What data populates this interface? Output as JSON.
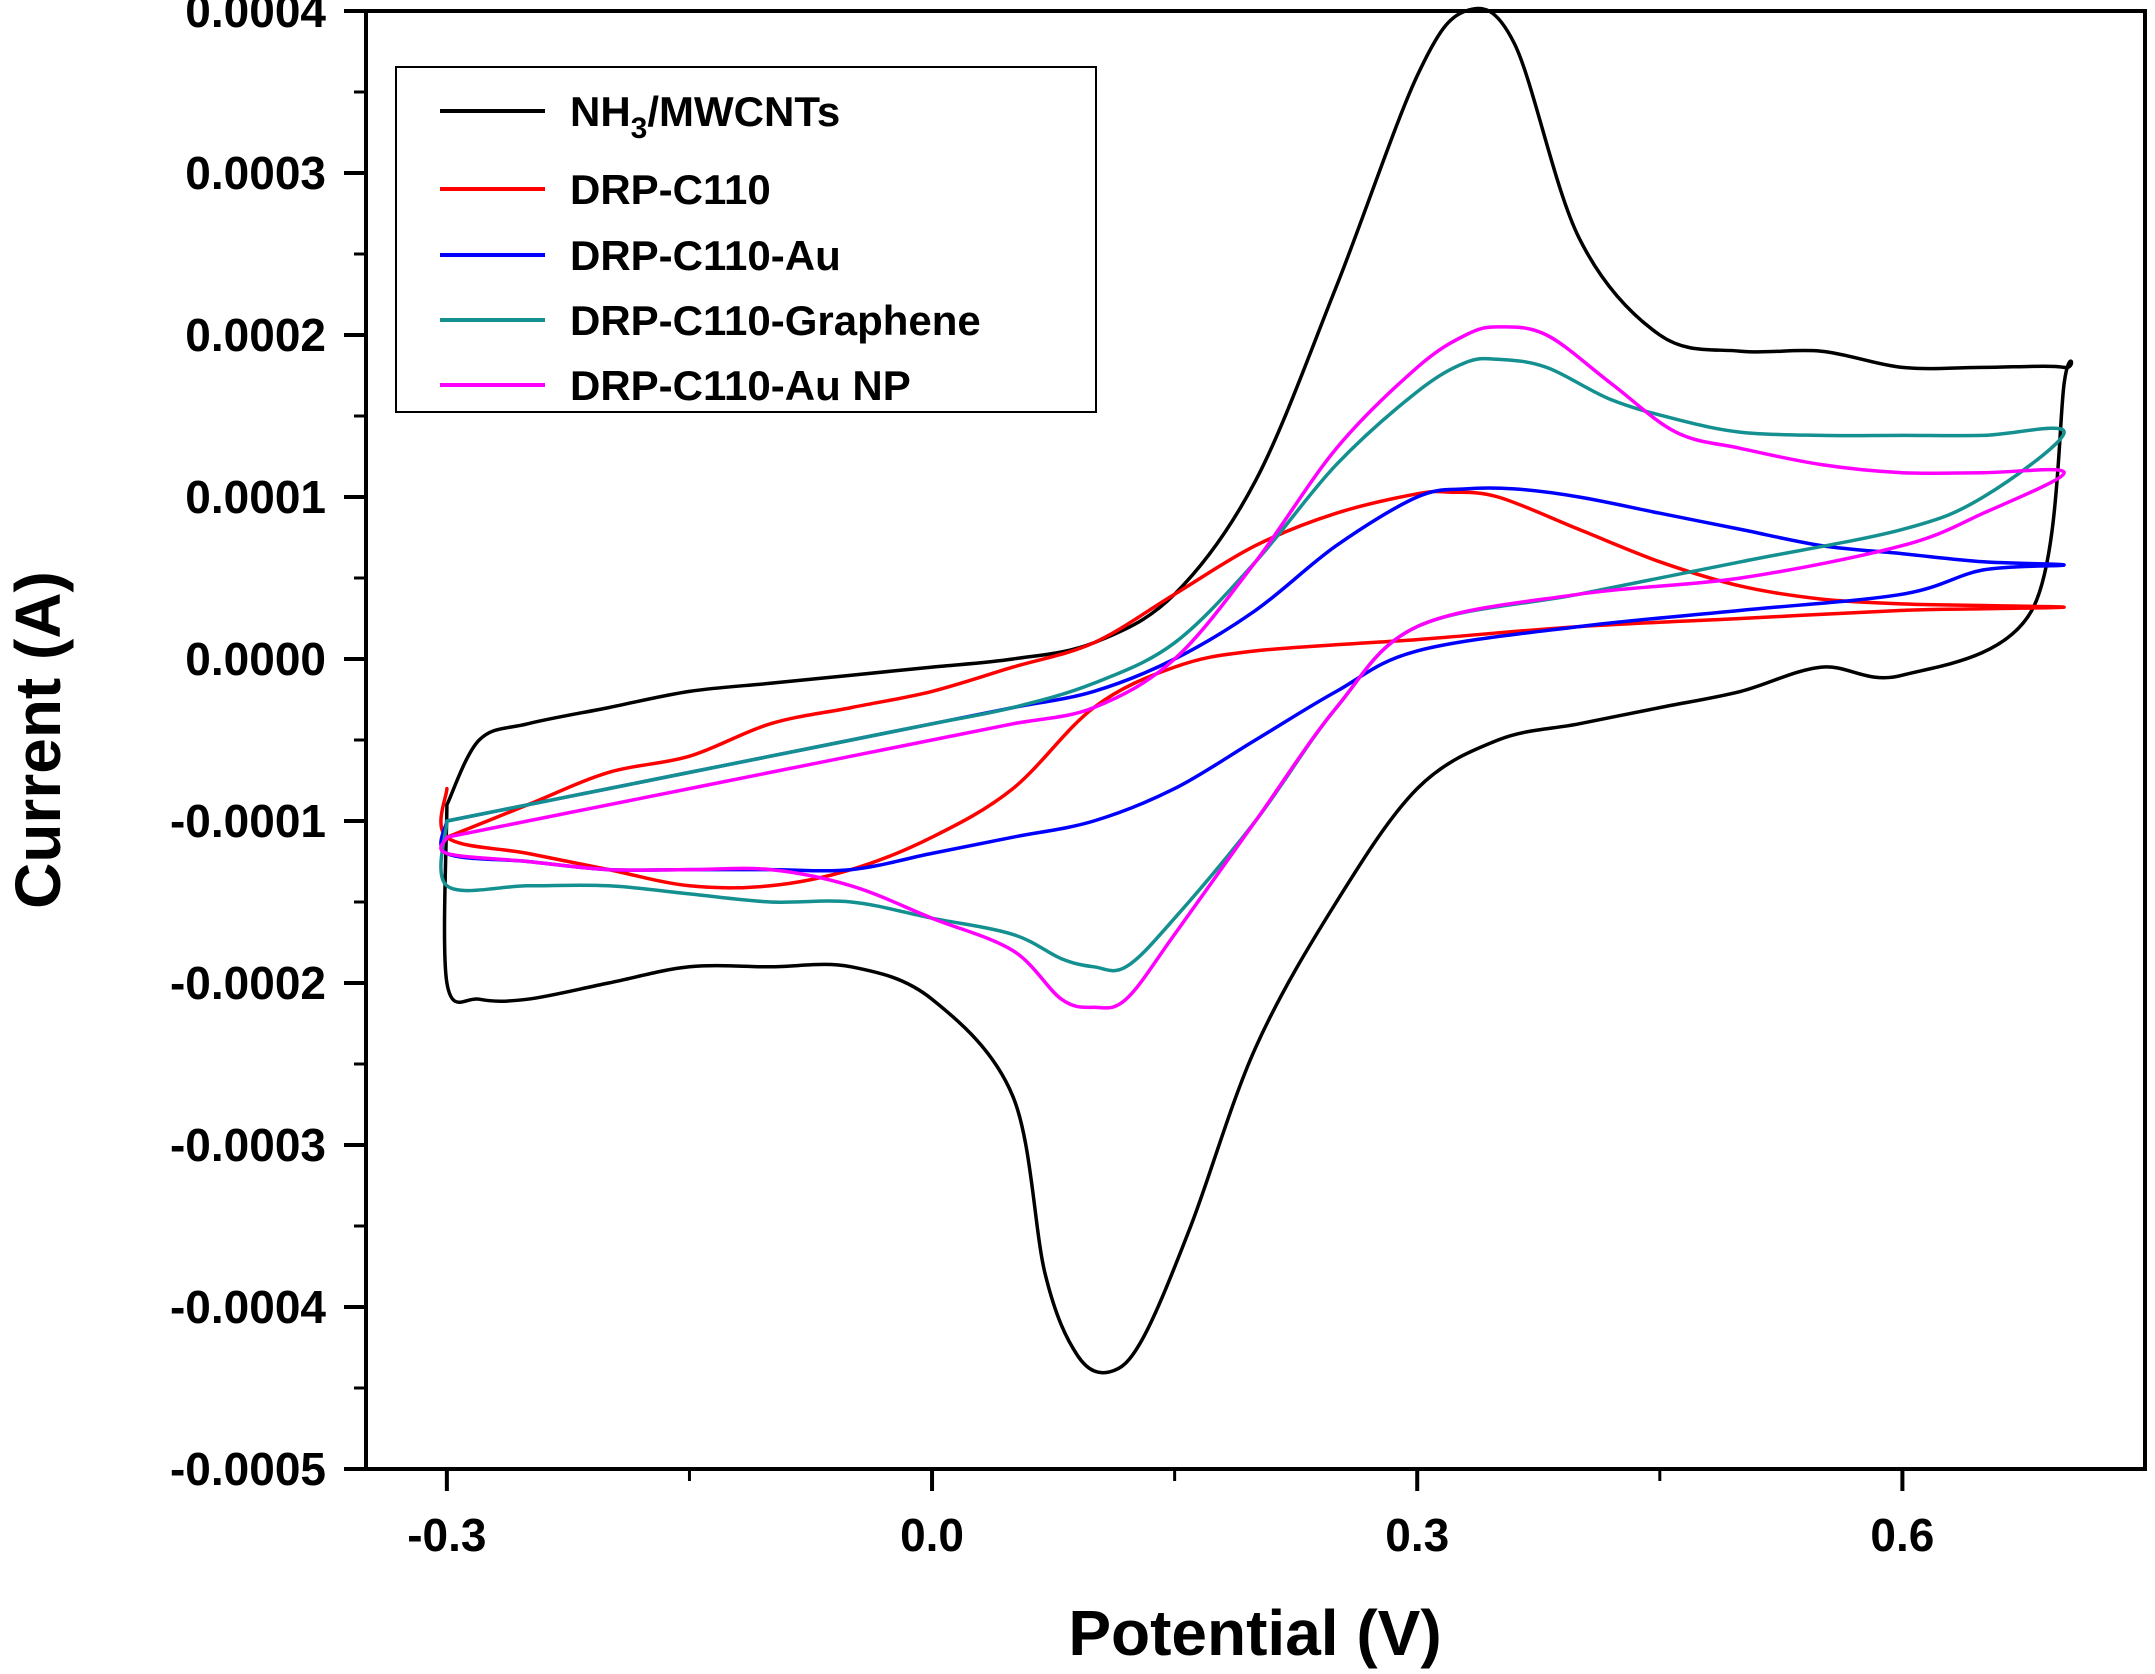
{
  "chart_data": {
    "type": "line",
    "title": "",
    "xlabel": "Potential (V)",
    "ylabel": "Current (A)",
    "xlim": [
      -0.35,
      0.75
    ],
    "ylim": [
      -0.0005,
      0.0004
    ],
    "xticks": [
      -0.3,
      0.0,
      0.3,
      0.6
    ],
    "xtick_labels": [
      "-0.3",
      "0.0",
      "0.3",
      "0.6"
    ],
    "yticks": [
      0.0004,
      0.0003,
      0.0002,
      0.0001,
      0.0,
      -0.0001,
      -0.0002,
      -0.0003,
      -0.0004,
      -0.0005
    ],
    "ytick_labels": [
      "0.0004",
      "0.0003",
      "0.0002",
      "0.0001",
      "0.0000",
      "-0.0001",
      "-0.0002",
      "-0.0003",
      "-0.0004",
      "-0.0005"
    ],
    "grid": false,
    "legend_position": "top-left",
    "series": [
      {
        "name": "NH3/MWCNTs",
        "label_main": "NH",
        "label_sub": "3",
        "label_rest": "/MWCNTs",
        "color": "#000000",
        "x": [
          -0.3,
          -0.28,
          -0.25,
          -0.2,
          -0.15,
          -0.1,
          -0.05,
          0.0,
          0.05,
          0.1,
          0.15,
          0.2,
          0.25,
          0.3,
          0.33,
          0.36,
          0.4,
          0.45,
          0.5,
          0.55,
          0.6,
          0.65,
          0.7,
          0.7,
          0.68,
          0.6,
          0.55,
          0.5,
          0.45,
          0.4,
          0.35,
          0.3,
          0.25,
          0.2,
          0.16,
          0.13,
          0.11,
          0.09,
          0.07,
          0.05,
          0.0,
          -0.05,
          -0.1,
          -0.15,
          -0.2,
          -0.25,
          -0.28,
          -0.3,
          -0.3
        ],
        "y": [
          -9e-05,
          -5e-05,
          -4e-05,
          -3e-05,
          -2e-05,
          -1.5e-05,
          -1e-05,
          -5e-06,
          0.0,
          1e-05,
          4e-05,
          0.00011,
          0.00023,
          0.00036,
          0.0004,
          0.00038,
          0.00026,
          0.0002,
          0.00019,
          0.00019,
          0.00018,
          0.00018,
          0.00018,
          0.00017,
          3e-05,
          -1e-05,
          -5e-06,
          -2e-05,
          -3e-05,
          -4e-05,
          -5e-05,
          -8e-05,
          -0.00015,
          -0.00024,
          -0.00035,
          -0.00042,
          -0.00044,
          -0.00043,
          -0.00038,
          -0.00027,
          -0.00021,
          -0.00019,
          -0.00019,
          -0.00019,
          -0.0002,
          -0.00021,
          -0.00021,
          -0.0002,
          -9e-05
        ]
      },
      {
        "name": "DRP-C110",
        "color": "#ff0000",
        "x": [
          -0.3,
          -0.25,
          -0.2,
          -0.15,
          -0.1,
          -0.05,
          0.0,
          0.05,
          0.1,
          0.15,
          0.2,
          0.25,
          0.3,
          0.32,
          0.35,
          0.4,
          0.45,
          0.5,
          0.55,
          0.6,
          0.65,
          0.7,
          0.65,
          0.6,
          0.5,
          0.4,
          0.3,
          0.2,
          0.15,
          0.1,
          0.05,
          0.0,
          -0.05,
          -0.1,
          -0.15,
          -0.2,
          -0.25,
          -0.3,
          -0.3
        ],
        "y": [
          -0.00011,
          -9e-05,
          -7e-05,
          -6e-05,
          -4e-05,
          -3e-05,
          -2e-05,
          -5e-06,
          1e-05,
          4e-05,
          7e-05,
          9e-05,
          0.000102,
          0.000103,
          0.0001,
          8e-05,
          6e-05,
          4.5e-05,
          3.7e-05,
          3.4e-05,
          3.3e-05,
          3.2e-05,
          3.1e-05,
          3e-05,
          2.5e-05,
          2e-05,
          1.2e-05,
          5e-06,
          -5e-06,
          -3e-05,
          -8e-05,
          -0.00011,
          -0.00013,
          -0.00014,
          -0.00014,
          -0.00013,
          -0.00012,
          -0.00011,
          -8e-05
        ]
      },
      {
        "name": "DRP-C110-Au",
        "color": "#0000ff",
        "x": [
          -0.3,
          -0.25,
          -0.2,
          -0.15,
          -0.1,
          -0.05,
          0.0,
          0.05,
          0.1,
          0.15,
          0.2,
          0.25,
          0.3,
          0.33,
          0.36,
          0.4,
          0.45,
          0.5,
          0.55,
          0.6,
          0.65,
          0.7,
          0.65,
          0.6,
          0.5,
          0.4,
          0.3,
          0.25,
          0.2,
          0.15,
          0.1,
          0.05,
          0.0,
          -0.05,
          -0.1,
          -0.15,
          -0.2,
          -0.25,
          -0.3,
          -0.3
        ],
        "y": [
          -0.0001,
          -9e-05,
          -8e-05,
          -7e-05,
          -6e-05,
          -5e-05,
          -4e-05,
          -3e-05,
          -2e-05,
          0.0,
          3e-05,
          7e-05,
          0.0001,
          0.000105,
          0.000105,
          0.0001,
          9e-05,
          8e-05,
          7e-05,
          6.5e-05,
          6e-05,
          5.8e-05,
          5.5e-05,
          4e-05,
          3e-05,
          2e-05,
          5e-06,
          -2e-05,
          -5e-05,
          -8e-05,
          -0.0001,
          -0.00011,
          -0.00012,
          -0.00013,
          -0.00013,
          -0.00013,
          -0.00013,
          -0.000125,
          -0.00012,
          -0.0001
        ]
      },
      {
        "name": "DRP-C110-Graphene",
        "color": "#159090",
        "x": [
          -0.3,
          -0.25,
          -0.2,
          -0.15,
          -0.1,
          -0.05,
          0.0,
          0.05,
          0.1,
          0.15,
          0.2,
          0.25,
          0.3,
          0.33,
          0.35,
          0.38,
          0.42,
          0.46,
          0.5,
          0.55,
          0.6,
          0.65,
          0.7,
          0.65,
          0.6,
          0.5,
          0.4,
          0.3,
          0.25,
          0.2,
          0.15,
          0.12,
          0.1,
          0.08,
          0.05,
          0.0,
          -0.05,
          -0.1,
          -0.15,
          -0.2,
          -0.25,
          -0.3,
          -0.3
        ],
        "y": [
          -0.0001,
          -9e-05,
          -8e-05,
          -7e-05,
          -6e-05,
          -5e-05,
          -4e-05,
          -3e-05,
          -1.5e-05,
          1e-05,
          6e-05,
          0.00012,
          0.000165,
          0.000183,
          0.000185,
          0.00018,
          0.00016,
          0.000148,
          0.00014,
          0.000138,
          0.000138,
          0.000138,
          0.00014,
          0.0001,
          8e-05,
          6e-05,
          4e-05,
          2e-05,
          -3e-05,
          -0.0001,
          -0.00016,
          -0.00019,
          -0.00019,
          -0.000185,
          -0.00017,
          -0.00016,
          -0.00015,
          -0.00015,
          -0.000145,
          -0.00014,
          -0.00014,
          -0.00014,
          -0.0001
        ]
      },
      {
        "name": "DRP-C110-Au NP",
        "color": "#ff00ff",
        "x": [
          -0.3,
          -0.25,
          -0.2,
          -0.15,
          -0.1,
          -0.05,
          0.0,
          0.05,
          0.1,
          0.15,
          0.2,
          0.25,
          0.3,
          0.33,
          0.35,
          0.38,
          0.42,
          0.46,
          0.5,
          0.55,
          0.6,
          0.65,
          0.7,
          0.65,
          0.6,
          0.5,
          0.4,
          0.3,
          0.25,
          0.2,
          0.15,
          0.12,
          0.1,
          0.08,
          0.05,
          0.0,
          -0.05,
          -0.1,
          -0.15,
          -0.2,
          -0.25,
          -0.3,
          -0.3
        ],
        "y": [
          -0.00011,
          -0.0001,
          -9e-05,
          -8e-05,
          -7e-05,
          -6e-05,
          -5e-05,
          -4e-05,
          -3e-05,
          0.0,
          6e-05,
          0.00013,
          0.00018,
          0.0002,
          0.000205,
          0.0002,
          0.00017,
          0.00014,
          0.00013,
          0.00012,
          0.000115,
          0.000115,
          0.000115,
          9e-05,
          7e-05,
          5e-05,
          4e-05,
          2e-05,
          -3e-05,
          -0.0001,
          -0.00017,
          -0.00021,
          -0.000215,
          -0.00021,
          -0.00018,
          -0.00016,
          -0.00014,
          -0.00013,
          -0.00013,
          -0.00013,
          -0.000125,
          -0.00012,
          -0.00011
        ]
      }
    ]
  }
}
